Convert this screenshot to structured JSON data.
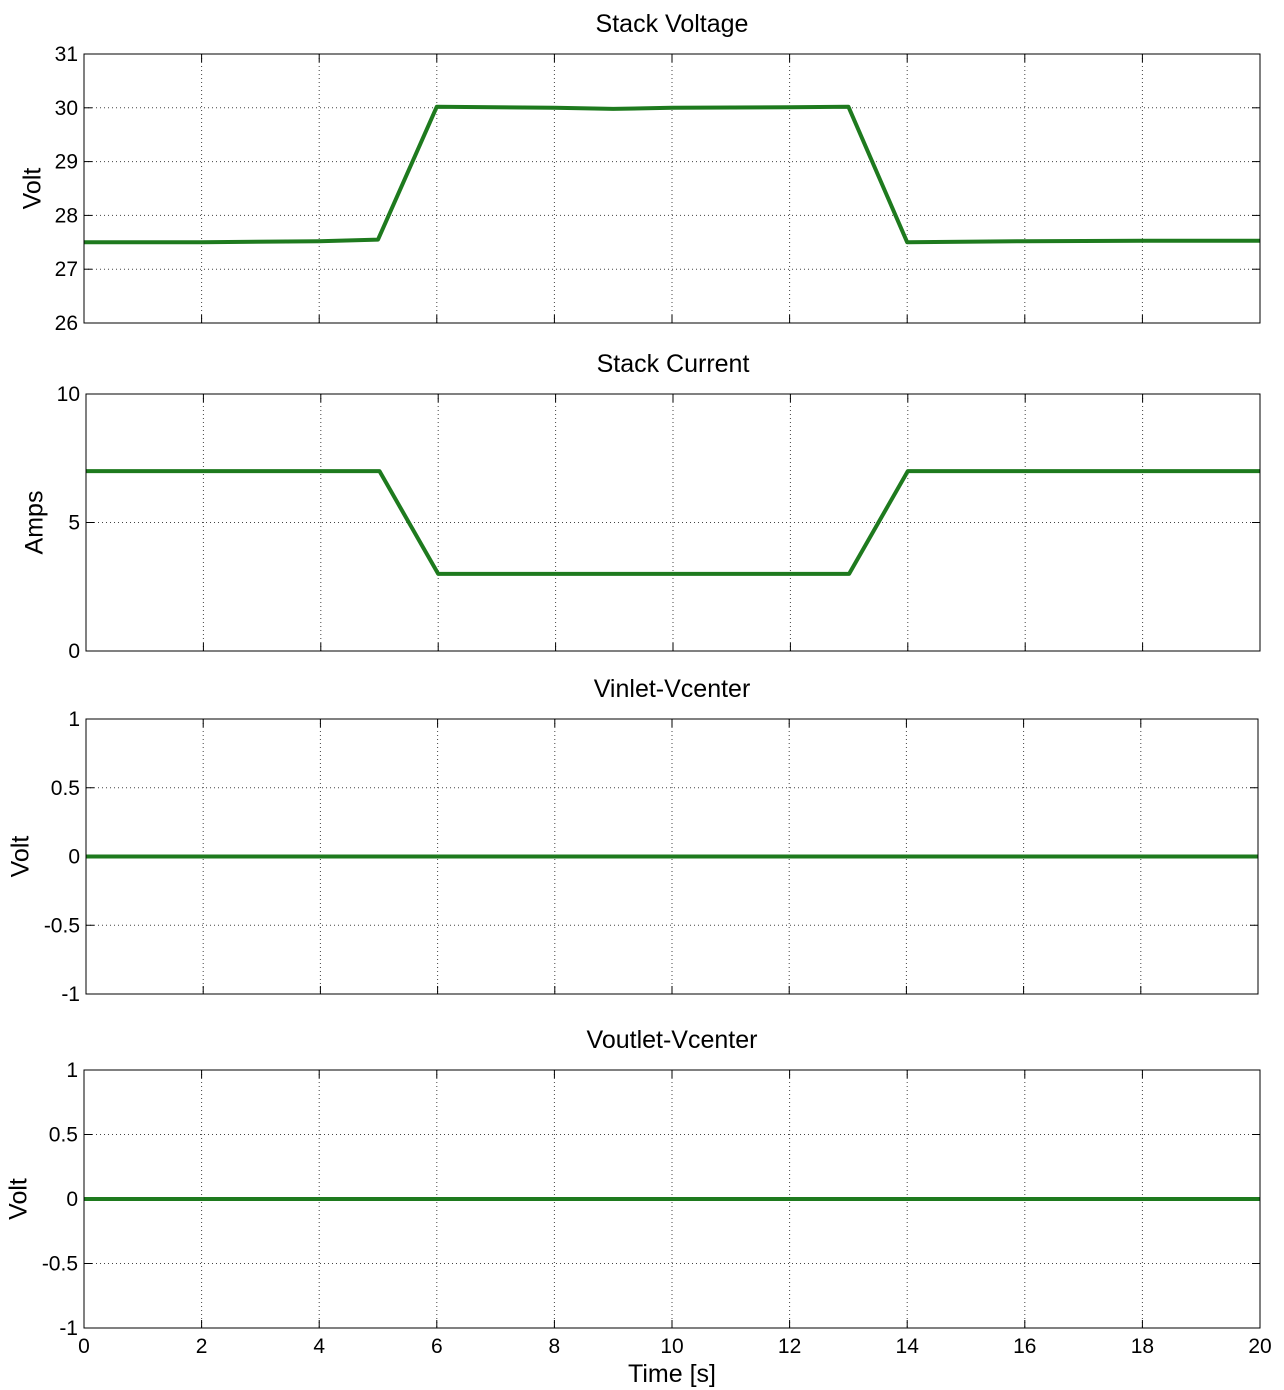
{
  "chart_data": [
    {
      "type": "line",
      "title": "Stack Voltage",
      "xlabel": "",
      "ylabel": "Volt",
      "xlim": [
        0,
        20
      ],
      "ylim": [
        26,
        31
      ],
      "xticks": [
        0,
        2,
        4,
        6,
        8,
        10,
        12,
        14,
        16,
        18,
        20
      ],
      "xtick_labels": [],
      "yticks": [
        26,
        27,
        28,
        29,
        30,
        31
      ],
      "ytick_labels": [
        "26",
        "27",
        "28",
        "29",
        "30",
        "31"
      ],
      "grid": true,
      "series": [
        {
          "color": "#1e7a1e",
          "x": [
            0,
            2,
            4,
            5,
            6,
            8,
            9,
            10,
            12,
            13,
            14,
            16,
            18,
            20
          ],
          "y": [
            27.5,
            27.5,
            27.52,
            27.55,
            30.02,
            30.0,
            29.98,
            30.0,
            30.01,
            30.02,
            27.5,
            27.52,
            27.53,
            27.53
          ]
        }
      ]
    },
    {
      "type": "line",
      "title": "Stack Current",
      "xlabel": "",
      "ylabel": "Amps",
      "xlim": [
        0,
        20
      ],
      "ylim": [
        0,
        10
      ],
      "xticks": [
        0,
        2,
        4,
        6,
        8,
        10,
        12,
        14,
        16,
        18,
        20
      ],
      "xtick_labels": [],
      "yticks": [
        0,
        5,
        10
      ],
      "ytick_labels": [
        "0",
        "5",
        "10"
      ],
      "grid": true,
      "series": [
        {
          "color": "#1e7a1e",
          "x": [
            0,
            5,
            6,
            13,
            14,
            20
          ],
          "y": [
            7,
            7,
            3,
            3,
            7,
            7
          ]
        }
      ]
    },
    {
      "type": "line",
      "title": "Vinlet-Vcenter",
      "xlabel": "",
      "ylabel": "Volt",
      "xlim": [
        0,
        20
      ],
      "ylim": [
        -1,
        1
      ],
      "xticks": [
        0,
        2,
        4,
        6,
        8,
        10,
        12,
        14,
        16,
        18,
        20
      ],
      "xtick_labels": [],
      "yticks": [
        -1,
        -0.5,
        0,
        0.5,
        1
      ],
      "ytick_labels": [
        "-1",
        "-0.5",
        "0",
        "0.5",
        "1"
      ],
      "grid": true,
      "series": [
        {
          "color": "#1e7a1e",
          "x": [
            0,
            20
          ],
          "y": [
            0,
            0
          ]
        }
      ]
    },
    {
      "type": "line",
      "title": "Voutlet-Vcenter",
      "xlabel": "Time [s]",
      "ylabel": "Volt",
      "xlim": [
        0,
        20
      ],
      "ylim": [
        -1,
        1
      ],
      "xticks": [
        0,
        2,
        4,
        6,
        8,
        10,
        12,
        14,
        16,
        18,
        20
      ],
      "xtick_labels": [
        "0",
        "2",
        "4",
        "6",
        "8",
        "10",
        "12",
        "14",
        "16",
        "18",
        "20"
      ],
      "yticks": [
        -1,
        -0.5,
        0,
        0.5,
        1
      ],
      "ytick_labels": [
        "-1",
        "-0.5",
        "0",
        "0.5",
        "1"
      ],
      "grid": true,
      "series": [
        {
          "color": "#1e7a1e",
          "x": [
            0,
            20
          ],
          "y": [
            0,
            0
          ]
        }
      ]
    }
  ]
}
